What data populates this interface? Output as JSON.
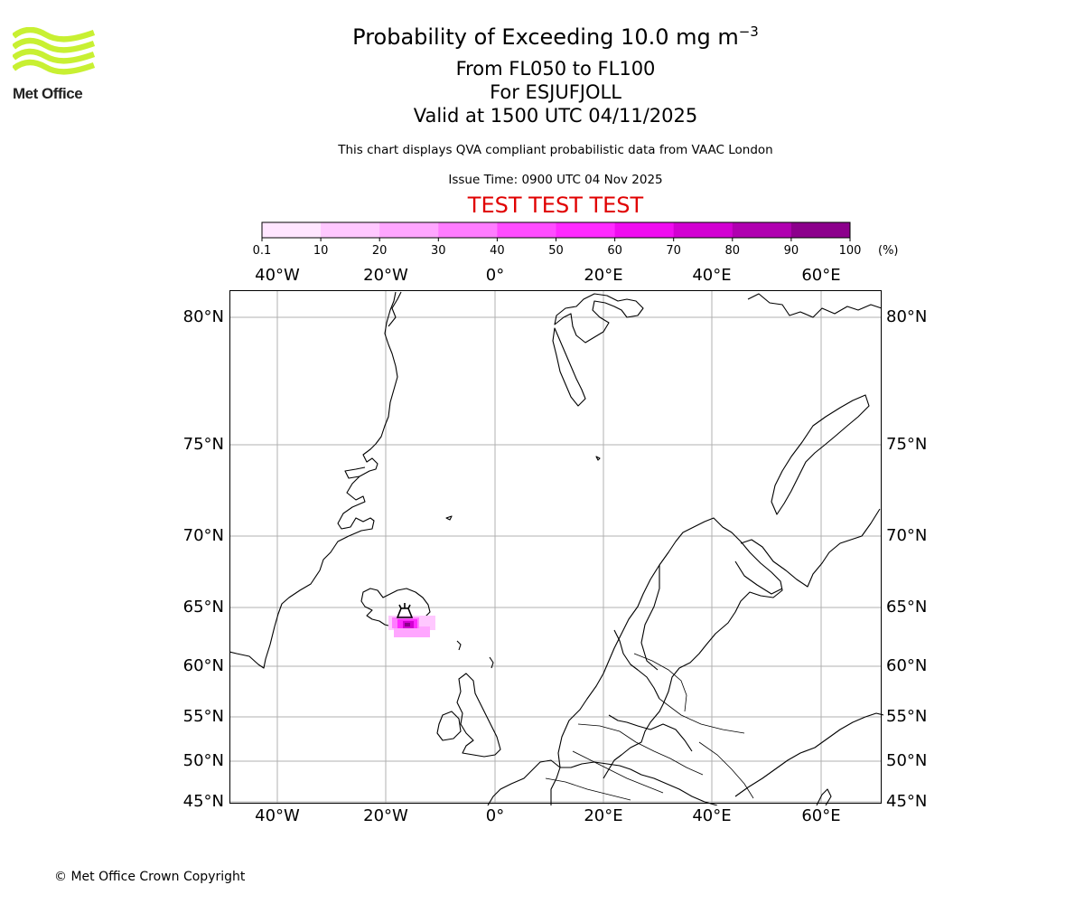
{
  "logo": {
    "text": "Met Office",
    "color": "#c8f032"
  },
  "title": {
    "line1_prefix": "Probability of Exceeding 10.0 mg m",
    "line1_sup": "−3",
    "line2": "From FL050 to FL100",
    "line3": "For ESJUFJOLL",
    "line4": "Valid at 1500 UTC 04/11/2025"
  },
  "subtitle": "This chart displays QVA compliant probabilistic data from VAAC London",
  "issue_time": "Issue Time: 0900 UTC 04 Nov 2025",
  "test_banner": "TEST TEST TEST",
  "colorbar": {
    "ticks": [
      "0.1",
      "10",
      "20",
      "30",
      "40",
      "50",
      "60",
      "70",
      "80",
      "90",
      "100"
    ],
    "unit": "(%)",
    "colors": [
      "#ffe6ff",
      "#ffc8ff",
      "#ffa6ff",
      "#ff7cff",
      "#ff4cff",
      "#ff2aff",
      "#f00cf0",
      "#d200d2",
      "#b000b0",
      "#8c008c",
      "#640064"
    ]
  },
  "axes": {
    "lon_labels": [
      "40°W",
      "20°W",
      "0°",
      "20°E",
      "40°E",
      "60°E"
    ],
    "lat_labels": [
      "80°N",
      "75°N",
      "70°N",
      "65°N",
      "60°N",
      "55°N",
      "50°N",
      "45°N"
    ]
  },
  "map": {
    "volcano": "ESJUFJOLL",
    "plume_peak_percent": 60
  },
  "copyright": "© Met Office Crown Copyright"
}
